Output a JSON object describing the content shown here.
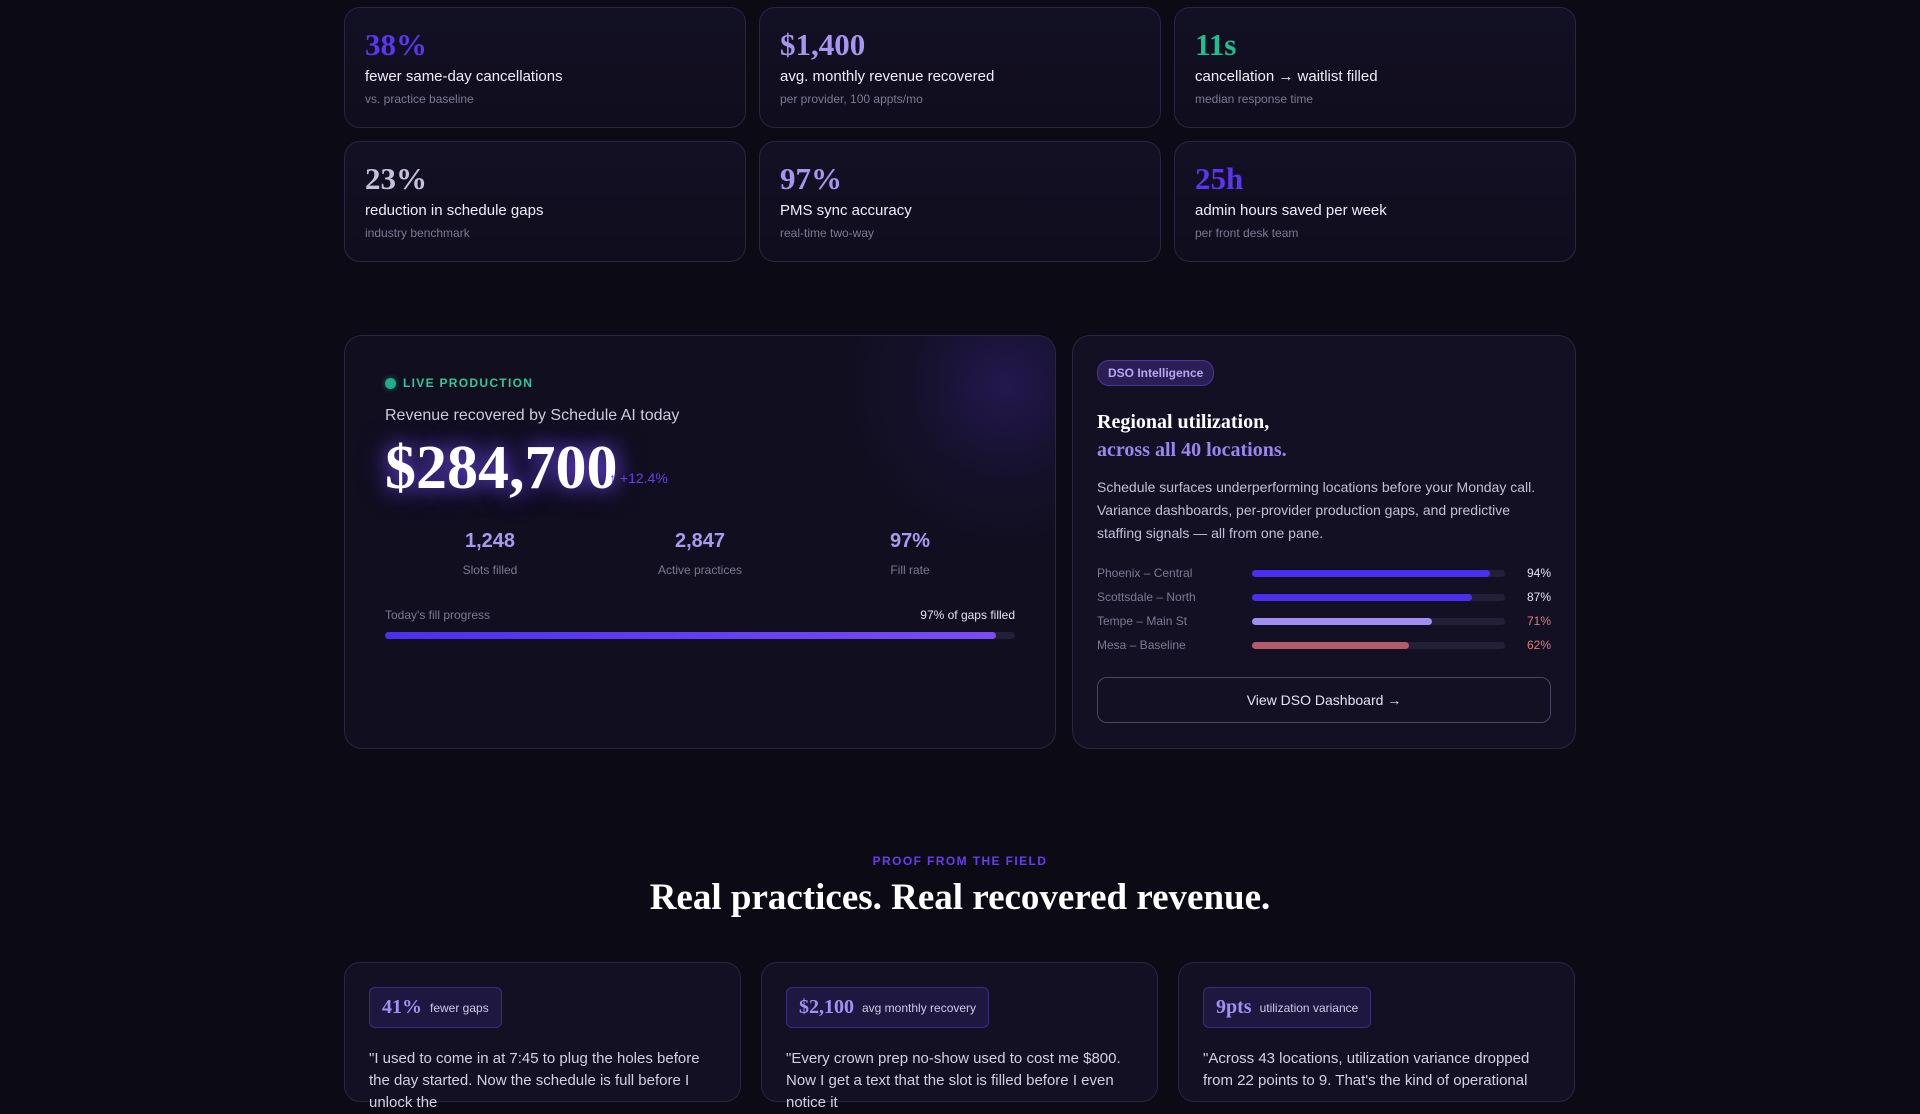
{
  "stats": [
    {
      "value": "38%",
      "label": "fewer same-day cancellations",
      "sub": "vs. practice baseline",
      "color": "#5c35ee"
    },
    {
      "value": "$1,400",
      "label": "avg. monthly revenue recovered",
      "sub": "per provider, 100 appts/mo",
      "color": "#a895f0"
    },
    {
      "value": "11s",
      "label": "cancellation → waitlist filled",
      "sub": "median response time",
      "color": "#1fbf8f"
    },
    {
      "value": "23%",
      "label": "reduction in schedule gaps",
      "sub": "industry benchmark",
      "color": "#c7c1de"
    },
    {
      "value": "97%",
      "label": "PMS sync accuracy",
      "sub": "real-time two-way",
      "color": "#a895f0"
    },
    {
      "value": "25h",
      "label": "admin hours saved per week",
      "sub": "per front desk team",
      "color": "#5c35ee"
    }
  ],
  "live": {
    "badge": "LIVE PRODUCTION",
    "subtitle": "Revenue recovered by Schedule AI today",
    "amount": "$284,700",
    "delta": "↑ +12.4%",
    "stats": [
      {
        "value": "1,248",
        "label": "Slots filled"
      },
      {
        "value": "2,847",
        "label": "Active practices"
      },
      {
        "value": "97%",
        "label": "Fill rate"
      }
    ],
    "progress_label": "Today's fill progress",
    "progress_value": "97% of gaps filled",
    "progress_fraction": 0.97
  },
  "dso": {
    "badge": "DSO Intelligence",
    "title_line1": "Regional utilization,",
    "title_line2": "across all 40 locations.",
    "body": "Schedule surfaces underperforming locations before your Monday call. Variance dashboards, per-provider production gaps, and predictive staffing signals — all from one pane.",
    "locations": [
      {
        "name": "Phoenix – Central",
        "pct_label": "94%",
        "value": 0.94,
        "bar": "#4b2ff0",
        "text_color": "#e6e3f2"
      },
      {
        "name": "Scottsdale – North",
        "pct_label": "87%",
        "value": 0.87,
        "bar": "#4b2ff0",
        "text_color": "#e6e3f2"
      },
      {
        "name": "Tempe – Main St",
        "pct_label": "71%",
        "value": 0.71,
        "bar": "#a18ef0",
        "text_color": "#e07a7a"
      },
      {
        "name": "Mesa – Baseline",
        "pct_label": "62%",
        "value": 0.62,
        "bar": "#b45a6a",
        "text_color": "#e07a7a"
      }
    ],
    "button": "View DSO Dashboard →"
  },
  "proof": {
    "eyebrow": "PROOF FROM THE FIELD",
    "title": "Real practices. Real recovered revenue.",
    "testimonials": [
      {
        "metric": "41%",
        "metric_label": "fewer gaps",
        "quote": "\"I used to come in at 7:45 to plug the holes before the day started. Now the schedule is full before I unlock the"
      },
      {
        "metric": "$2,100",
        "metric_label": "avg monthly recovery",
        "quote": "\"Every crown prep no-show used to cost me $800. Now I get a text that the slot is filled before I even notice it"
      },
      {
        "metric": "9pts",
        "metric_label": "utilization variance",
        "quote": "\"Across 43 locations, utilization variance dropped from 22 points to 9. That's the kind of operational"
      }
    ]
  }
}
